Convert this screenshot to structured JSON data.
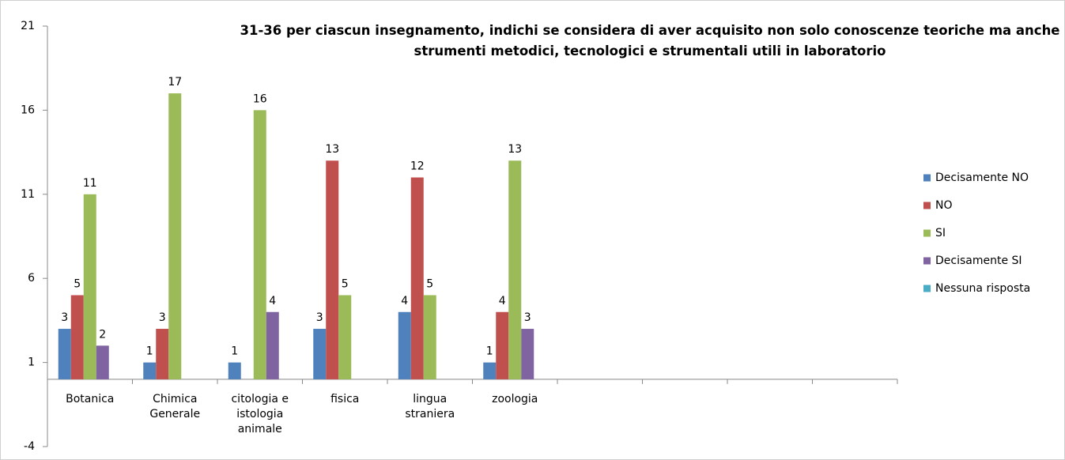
{
  "chart_data": {
    "type": "bar",
    "title": "31-36 per ciascun insegnamento, indichi se considera di aver acquisito non solo conoscenze teoriche ma anche strumenti metodici, tecnologici e strumentali utili in laboratorio",
    "categories": [
      "Botanica",
      "Chimica Generale",
      "citologia e istologia animale",
      "fisica",
      "lingua straniera",
      "zoologia",
      null,
      null,
      null,
      null
    ],
    "series": [
      {
        "name": "Decisamente NO",
        "color": "#4f81bd",
        "values": [
          3,
          1,
          1,
          3,
          4,
          1,
          null,
          null,
          null,
          null
        ]
      },
      {
        "name": "NO",
        "color": "#c0504d",
        "values": [
          5,
          3,
          null,
          13,
          12,
          4,
          null,
          null,
          null,
          null
        ]
      },
      {
        "name": "SI",
        "color": "#9bbb59",
        "values": [
          11,
          17,
          16,
          5,
          5,
          13,
          null,
          null,
          null,
          null
        ]
      },
      {
        "name": "Decisamente SI",
        "color": "#8064a2",
        "values": [
          2,
          null,
          4,
          null,
          null,
          3,
          null,
          null,
          null,
          null
        ]
      },
      {
        "name": "Nessuna risposta",
        "color": "#4bacc6",
        "values": [
          null,
          null,
          null,
          null,
          null,
          null,
          null,
          null,
          null,
          null
        ]
      }
    ],
    "ylim": [
      -4,
      21
    ],
    "yticks": [
      -4,
      1,
      6,
      11,
      16,
      21
    ],
    "grid": false,
    "legend": "right"
  }
}
